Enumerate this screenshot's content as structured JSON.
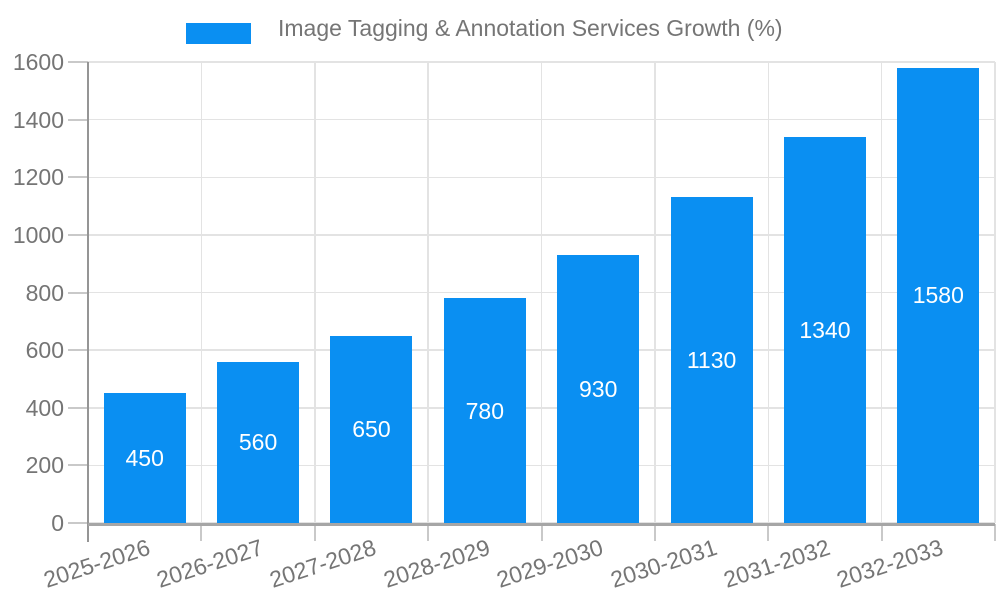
{
  "chart_data": {
    "type": "bar",
    "title": "Image Tagging & Annotation Services Growth (%)",
    "legend": [
      "Image Tagging & Annotation Services Growth (%)"
    ],
    "legend_position": "top",
    "categories": [
      "2025-2026",
      "2026-2027",
      "2027-2028",
      "2028-2029",
      "2029-2030",
      "2030-2031",
      "2031-2032",
      "2032-2033"
    ],
    "values": [
      450,
      560,
      650,
      780,
      930,
      1130,
      1340,
      1580
    ],
    "xlabel": "",
    "ylabel": "",
    "ylim": [
      0,
      1600
    ],
    "ytick_step": 200,
    "yticks": [
      0,
      200,
      400,
      600,
      800,
      1000,
      1200,
      1400,
      1600
    ],
    "grid": true,
    "x_label_rotation_deg": -18,
    "value_labels_inside_bars": true,
    "colors": {
      "bar": "#0a8ff2",
      "value_label": "#ffffff",
      "axis_text": "#757575",
      "gridline": "#e3e3e3",
      "tick": "#c9c9c9",
      "y_axis_line": "#959595",
      "x_axis_line": "#a6a6a6",
      "background": "#ffffff"
    }
  }
}
